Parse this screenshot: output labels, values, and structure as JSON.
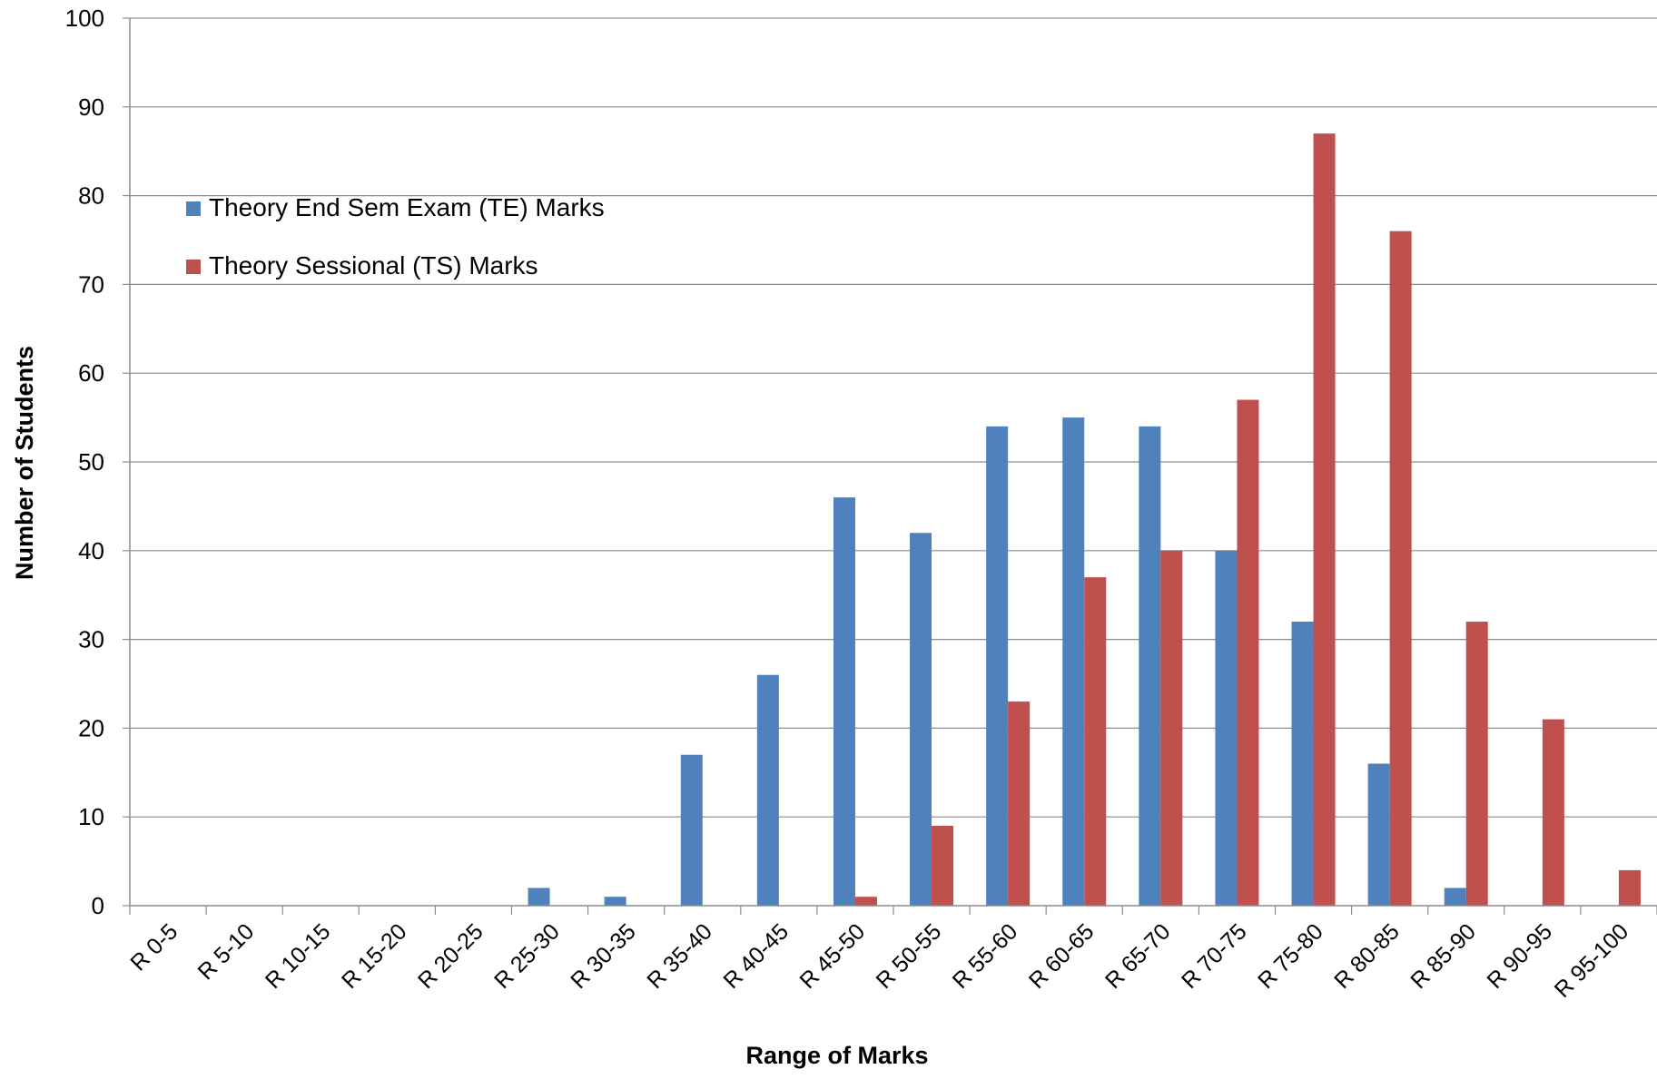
{
  "chart_data": {
    "type": "bar",
    "title": "",
    "xlabel": "Range of Marks",
    "ylabel": "Number of Students",
    "ylim": [
      0,
      100
    ],
    "yticks": [
      0,
      10,
      20,
      30,
      40,
      50,
      60,
      70,
      80,
      90,
      100
    ],
    "grid": true,
    "legend_position": "top-left",
    "categories": [
      "R  0-5",
      "R   5-10",
      "R 10-15",
      "R 15-20",
      "R 20-25",
      "R 25-30",
      "R 30-35",
      "R 35-40",
      "R 40-45",
      "R 45-50",
      "R 50-55",
      "R 55-60",
      "R 60-65",
      "R 65-70",
      "R 70-75",
      "R 75-80",
      "R 80-85",
      "R 85-90",
      "R 90-95",
      "R 95-100"
    ],
    "series": [
      {
        "name": "Theory End Sem Exam (TE) Marks",
        "color": "#4F81BD",
        "values": [
          0,
          0,
          0,
          0,
          0,
          2,
          1,
          17,
          26,
          46,
          42,
          54,
          55,
          54,
          40,
          32,
          16,
          2,
          0,
          0
        ]
      },
      {
        "name": "Theory Sessional (TS) Marks",
        "color": "#C0504D",
        "values": [
          0,
          0,
          0,
          0,
          0,
          0,
          0,
          0,
          0,
          1,
          9,
          23,
          37,
          40,
          57,
          87,
          76,
          32,
          21,
          4
        ]
      }
    ]
  }
}
